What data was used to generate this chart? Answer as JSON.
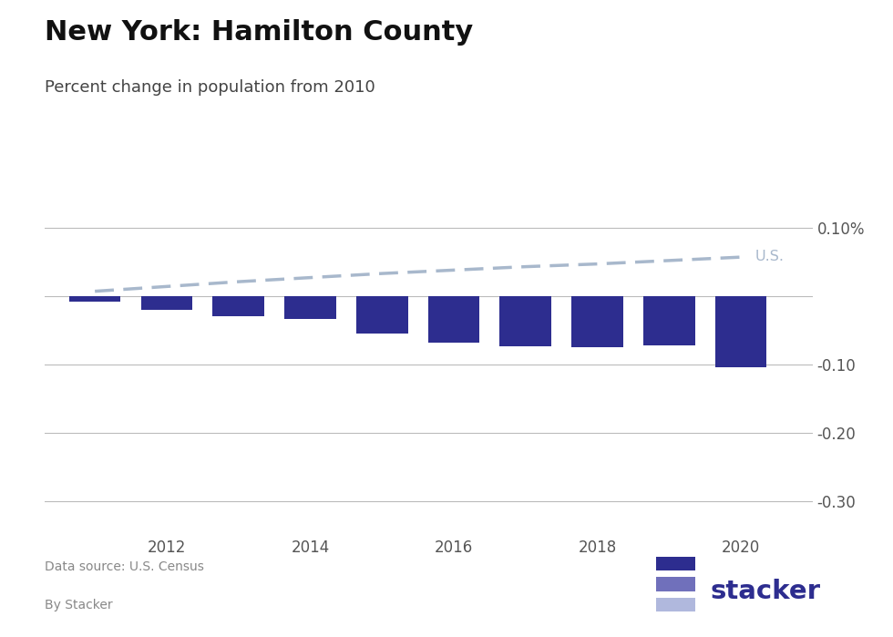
{
  "title": "New York: Hamilton County",
  "subtitle": "Percent change in population from 2010",
  "source_line1": "Data source: U.S. Census",
  "source_line2": "By Stacker",
  "bar_years": [
    2011,
    2012,
    2013,
    2014,
    2015,
    2016,
    2017,
    2018,
    2019,
    2020
  ],
  "bar_values": [
    -0.008,
    -0.02,
    -0.03,
    -0.033,
    -0.055,
    -0.068,
    -0.074,
    -0.075,
    -0.072,
    -0.1045
  ],
  "us_years": [
    2011,
    2012,
    2013,
    2014,
    2015,
    2016,
    2017,
    2018,
    2019,
    2020
  ],
  "us_values": [
    0.007,
    0.014,
    0.021,
    0.027,
    0.033,
    0.038,
    0.043,
    0.047,
    0.052,
    0.057
  ],
  "bar_color": "#2d2d8f",
  "us_line_color": "#a8b8cc",
  "us_label_color": "#a8b8cc",
  "background_color": "#ffffff",
  "title_fontsize": 22,
  "subtitle_fontsize": 13,
  "ylim": [
    -0.35,
    0.135
  ],
  "yticks": [
    0.1,
    0.0,
    -0.1,
    -0.2,
    -0.3
  ],
  "ytick_labels": [
    "0.10%",
    "",
    "-0.10",
    "-0.20",
    "-0.30"
  ],
  "xtick_labels": [
    "2012",
    "2014",
    "2016",
    "2018",
    "2020"
  ],
  "xtick_positions": [
    2012,
    2014,
    2016,
    2018,
    2020
  ],
  "bar_width": 0.72,
  "stacker_dark": "#2d2d8f",
  "stacker_mid": "#7070bb",
  "stacker_light": "#b0b8dd",
  "grid_color": "#bbbbbb",
  "tick_color": "#555555"
}
